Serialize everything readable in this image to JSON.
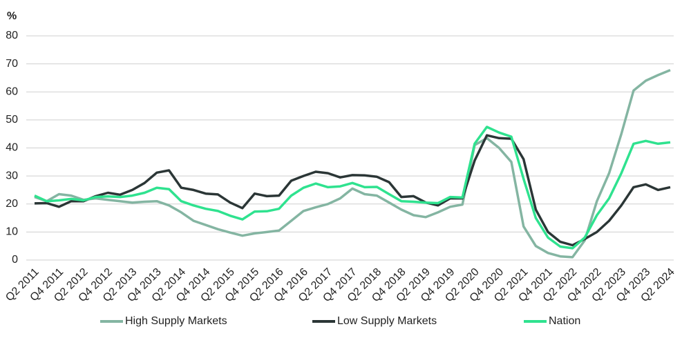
{
  "chart_data": {
    "type": "line",
    "y_axis_label": "%",
    "categories": [
      "Q2 2011",
      null,
      "Q4 2011",
      null,
      "Q2 2012",
      null,
      "Q4 2012",
      null,
      "Q2 2013",
      null,
      "Q4 2013",
      null,
      "Q2 2014",
      null,
      "Q4 2014",
      null,
      "Q2 2015",
      null,
      "Q4 2015",
      null,
      "Q2 2016",
      null,
      "Q4 2016",
      null,
      "Q2 2017",
      null,
      "Q4 2017",
      null,
      "Q2 2018",
      null,
      "Q4 2018",
      null,
      "Q2 2019",
      null,
      "Q4 2019",
      null,
      "Q2 2020",
      null,
      "Q4 2020",
      null,
      "Q2 2021",
      null,
      "Q4 2021",
      null,
      "Q2 2022",
      null,
      "Q4 2022",
      null,
      "Q2 2023",
      null,
      "Q4 2023",
      null,
      "Q2 2024"
    ],
    "series": [
      {
        "name": "High Supply Markets",
        "color": "#84b5a2",
        "values": [
          22.5,
          21,
          23.5,
          23,
          21.5,
          22,
          21.5,
          21,
          20.5,
          20.8,
          21,
          19.5,
          17,
          14,
          12.5,
          11,
          9.8,
          8.7,
          9.5,
          10,
          10.5,
          14,
          17.5,
          18.8,
          20,
          22,
          25.5,
          23.5,
          23,
          20.5,
          18,
          16,
          15.3,
          17,
          19,
          19.8,
          41,
          43.5,
          40,
          35,
          12,
          5,
          2.5,
          1.3,
          1,
          7,
          21,
          31,
          45,
          60.5,
          64,
          66,
          67.8
        ]
      },
      {
        "name": "Low Supply Markets",
        "color": "#2b3636",
        "values": [
          20.2,
          20.3,
          19,
          21,
          21,
          22.8,
          24,
          23.3,
          25,
          27.5,
          31.2,
          32,
          25.8,
          25,
          23.7,
          23.4,
          20.5,
          18.5,
          23.7,
          22.8,
          23,
          28.3,
          30,
          31.5,
          31,
          29.5,
          30.3,
          30.2,
          29.7,
          27.8,
          22.5,
          22.8,
          20.5,
          19.5,
          22,
          22,
          35.5,
          44.5,
          43.5,
          43.3,
          36,
          18,
          10,
          6.5,
          5.3,
          7.5,
          10,
          14,
          19.5,
          26,
          27,
          25,
          26
        ]
      },
      {
        "name": "Nation",
        "color": "#2fe28f",
        "values": [
          23,
          21,
          21.3,
          21.8,
          21.3,
          22.5,
          22.7,
          22.5,
          23,
          24,
          25.8,
          25.3,
          21,
          19.5,
          18.3,
          17.5,
          15.8,
          14.5,
          17.3,
          17.4,
          18.3,
          23,
          25.8,
          27.3,
          26,
          26.3,
          27.5,
          26,
          26.1,
          23.5,
          21,
          20.8,
          20.5,
          20.3,
          22.5,
          22.3,
          41.5,
          47.5,
          45.5,
          44,
          29,
          15,
          8,
          4.8,
          4.2,
          8,
          16,
          22,
          31,
          41.5,
          42.5,
          41.5,
          42
        ]
      }
    ],
    "ylim": [
      0,
      80
    ],
    "yticks": [
      0,
      10,
      20,
      30,
      40,
      50,
      60,
      70,
      80
    ],
    "grid": true,
    "legend": "bottom"
  }
}
